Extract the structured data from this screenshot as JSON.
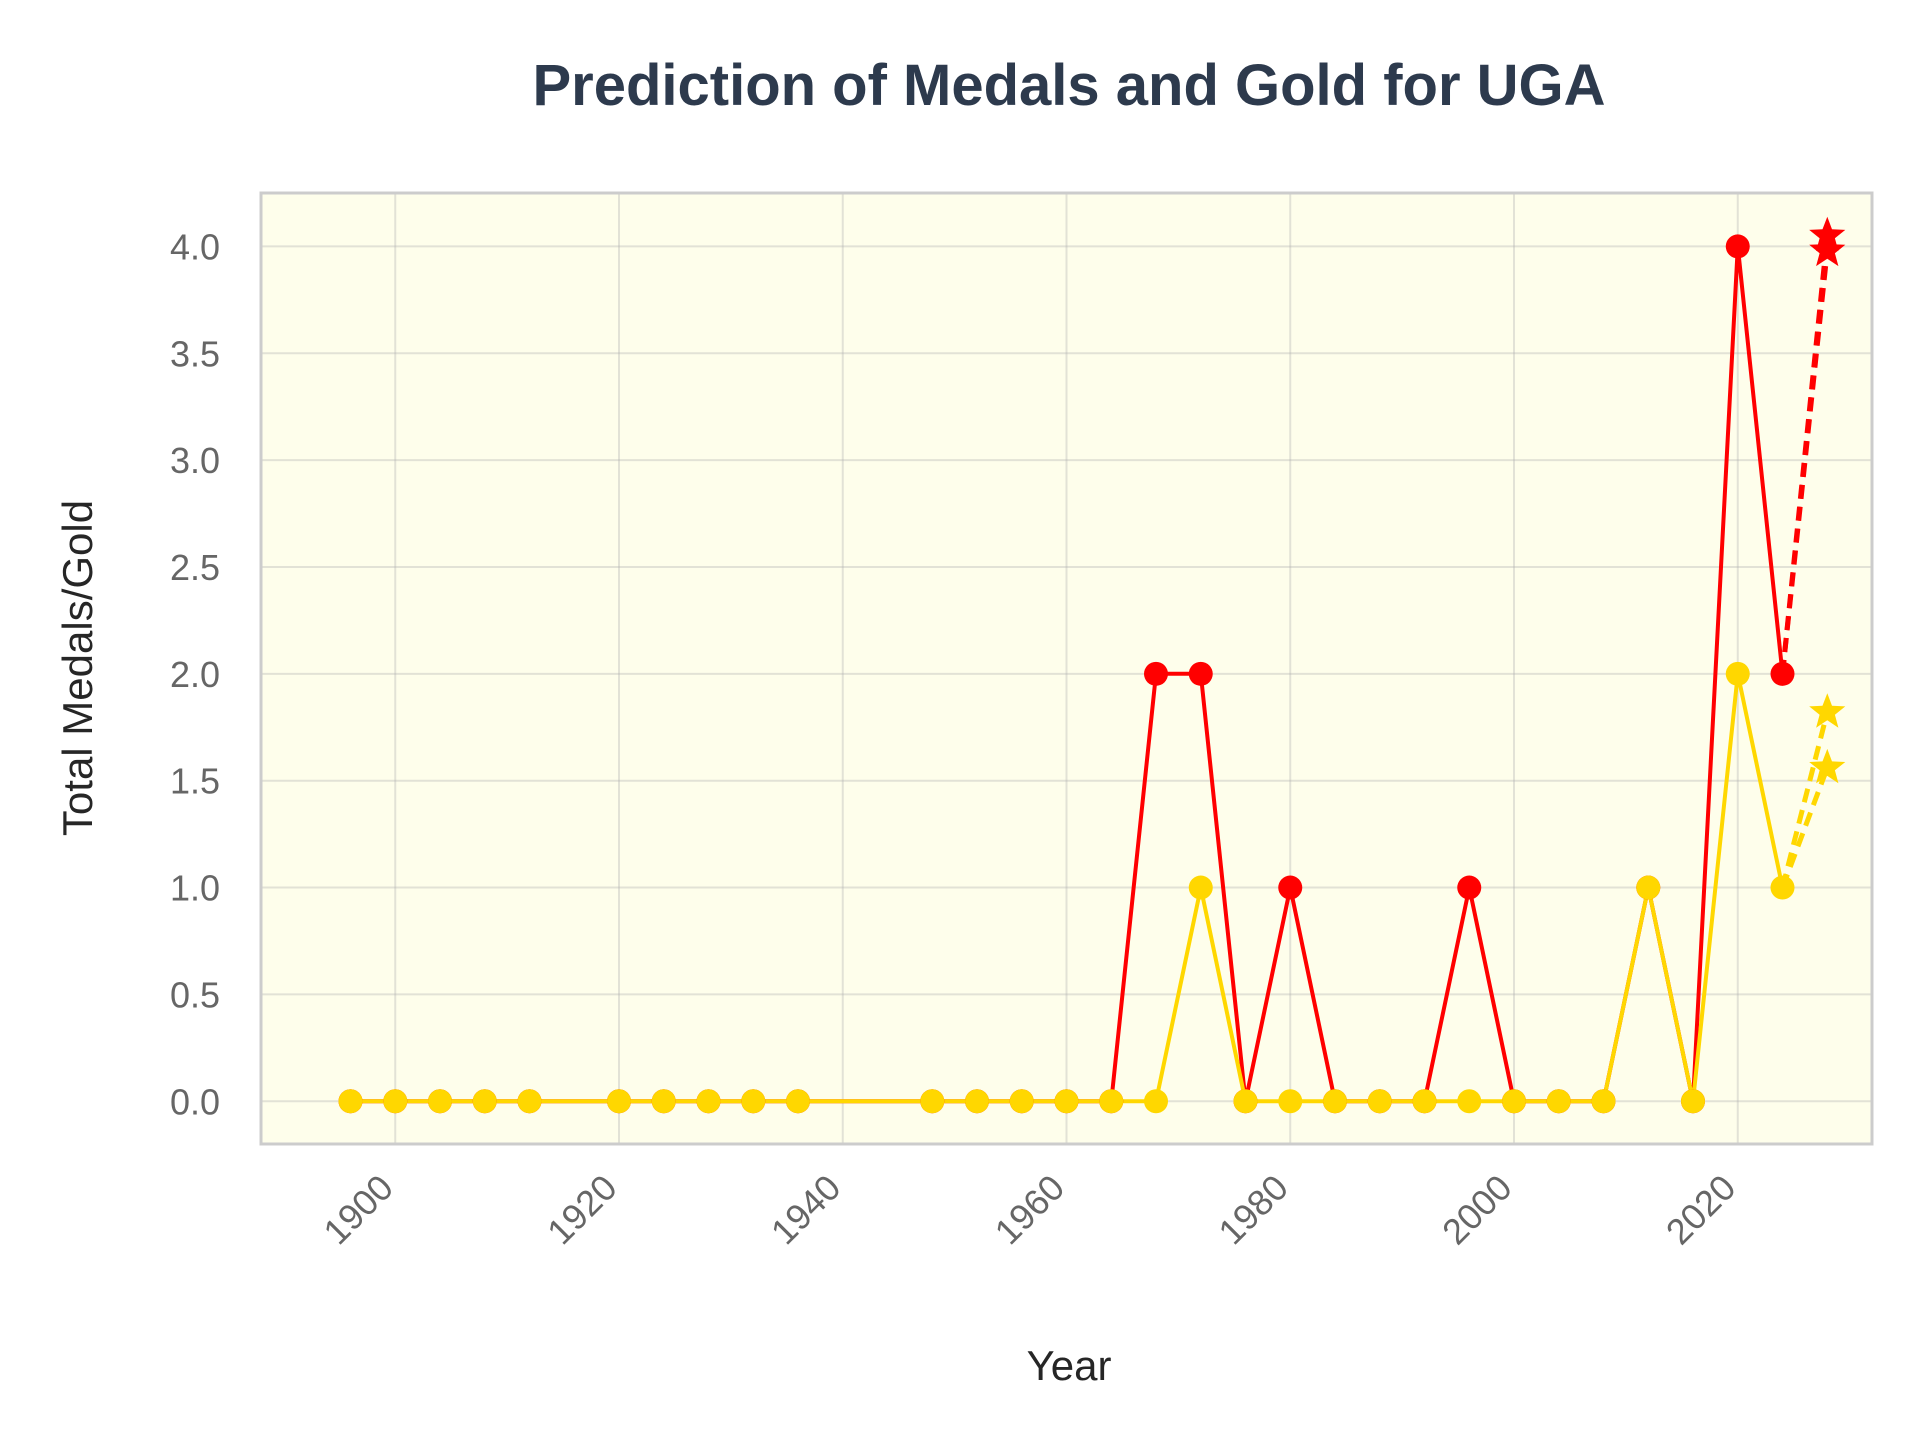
{
  "chart_data": {
    "type": "line",
    "title": "Prediction of Medals and Gold for UGA",
    "xlabel": "Year",
    "ylabel": "Total Medals/Gold",
    "xlim": [
      1888,
      2032
    ],
    "ylim": [
      -0.2,
      4.25
    ],
    "x_ticks": [
      "1900",
      "1920",
      "1940",
      "1960",
      "1980",
      "2000",
      "2020"
    ],
    "y_ticks": [
      "0.0",
      "0.5",
      "1.0",
      "1.5",
      "2.0",
      "2.5",
      "3.0",
      "3.5",
      "4.0"
    ],
    "grid": true,
    "plot_background": "#fefeeb",
    "series": [
      {
        "color": "#ff0000",
        "x": [
          1896,
          1900,
          1904,
          1908,
          1912,
          1920,
          1924,
          1928,
          1932,
          1936,
          1948,
          1952,
          1956,
          1960,
          1964,
          1968,
          1972,
          1976,
          1980,
          1984,
          1988,
          1992,
          1996,
          2000,
          2004,
          2008,
          2012,
          2016,
          2020,
          2024
        ],
        "y": [
          0,
          0,
          0,
          0,
          0,
          0,
          0,
          0,
          0,
          0,
          0,
          0,
          0,
          0,
          0,
          2,
          2,
          0,
          1,
          0,
          0,
          0,
          1,
          0,
          0,
          0,
          1,
          0,
          4,
          2
        ]
      },
      {
        "color": "#ffd700",
        "x": [
          1896,
          1900,
          1904,
          1908,
          1912,
          1920,
          1924,
          1928,
          1932,
          1936,
          1948,
          1952,
          1956,
          1960,
          1964,
          1968,
          1972,
          1976,
          1980,
          1984,
          1988,
          1992,
          1996,
          2000,
          2004,
          2008,
          2012,
          2016,
          2020,
          2024
        ],
        "y": [
          0,
          0,
          0,
          0,
          0,
          0,
          0,
          0,
          0,
          0,
          0,
          0,
          0,
          0,
          0,
          0,
          1,
          0,
          0,
          0,
          0,
          0,
          0,
          0,
          0,
          0,
          1,
          0,
          2,
          1
        ]
      }
    ],
    "predictions": [
      {
        "color": "#ff0000",
        "from": [
          2024,
          2
        ],
        "points": [
          [
            2028,
            4.05
          ],
          [
            2028,
            3.98
          ]
        ]
      },
      {
        "color": "#ffd700",
        "from": [
          2024,
          1
        ],
        "points": [
          [
            2028,
            1.82
          ],
          [
            2028,
            1.56
          ]
        ]
      }
    ]
  }
}
